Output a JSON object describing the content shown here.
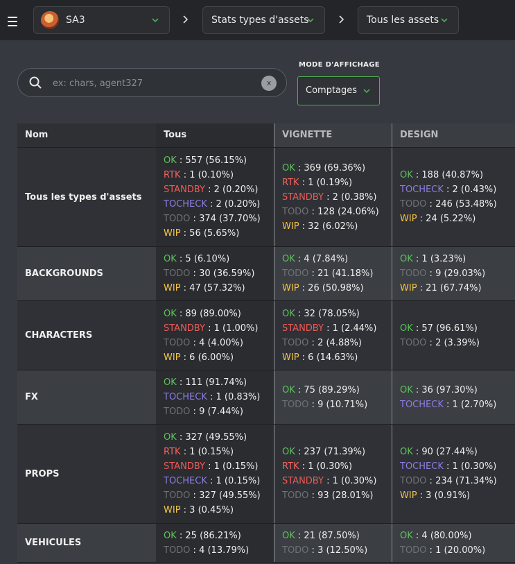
{
  "nav": {
    "project": "SA3",
    "section": "Stats types d'assets",
    "filter": "Tous les assets"
  },
  "search": {
    "placeholder": "ex: chars, agent327",
    "clear_label": "x"
  },
  "mode": {
    "label": "MODE D'AFFICHAGE",
    "value": "Comptages"
  },
  "colors": {
    "OK": "#5ec25a",
    "RTK": "#f2645e",
    "STANDBY": "#ed5a56",
    "TOCHECK": "#8c7ee0",
    "TODO": "#6e7176",
    "WIP": "#f6c343",
    "accent": "#4caf50"
  },
  "table": {
    "columns": [
      "Nom",
      "Tous",
      "VIGNETTE",
      "DESIGN"
    ],
    "rows": [
      {
        "name": "Tous les types d'assets",
        "cells": [
          [
            [
              "OK",
              " : 557 (56.15%)"
            ],
            [
              "RTK",
              " : 1 (0.10%)"
            ],
            [
              "STANDBY",
              " : 2 (0.20%)"
            ],
            [
              "TOCHECK",
              " : 2 (0.20%)"
            ],
            [
              "TODO",
              " : 374 (37.70%)"
            ],
            [
              "WIP",
              " : 56 (5.65%)"
            ]
          ],
          [
            [
              "OK",
              " : 369 (69.36%)"
            ],
            [
              "RTK",
              " : 1 (0.19%)"
            ],
            [
              "STANDBY",
              " : 2 (0.38%)"
            ],
            [
              "TODO",
              " : 128 (24.06%)"
            ],
            [
              "WIP",
              " : 32 (6.02%)"
            ]
          ],
          [
            [
              "OK",
              " : 188 (40.87%)"
            ],
            [
              "TOCHECK",
              " : 2 (0.43%)"
            ],
            [
              "TODO",
              " : 246 (53.48%)"
            ],
            [
              "WIP",
              " : 24 (5.22%)"
            ]
          ]
        ]
      },
      {
        "name": "BACKGROUNDS",
        "cells": [
          [
            [
              "OK",
              " : 5 (6.10%)"
            ],
            [
              "TODO",
              " : 30 (36.59%)"
            ],
            [
              "WIP",
              " : 47 (57.32%)"
            ]
          ],
          [
            [
              "OK",
              " : 4 (7.84%)"
            ],
            [
              "TODO",
              " : 21 (41.18%)"
            ],
            [
              "WIP",
              " : 26 (50.98%)"
            ]
          ],
          [
            [
              "OK",
              " : 1 (3.23%)"
            ],
            [
              "TODO",
              " : 9 (29.03%)"
            ],
            [
              "WIP",
              " : 21 (67.74%)"
            ]
          ]
        ]
      },
      {
        "name": "CHARACTERS",
        "cells": [
          [
            [
              "OK",
              " : 89 (89.00%)"
            ],
            [
              "STANDBY",
              " : 1 (1.00%)"
            ],
            [
              "TODO",
              " : 4 (4.00%)"
            ],
            [
              "WIP",
              " : 6 (6.00%)"
            ]
          ],
          [
            [
              "OK",
              " : 32 (78.05%)"
            ],
            [
              "STANDBY",
              " : 1 (2.44%)"
            ],
            [
              "TODO",
              " : 2 (4.88%)"
            ],
            [
              "WIP",
              " : 6 (14.63%)"
            ]
          ],
          [
            [
              "OK",
              " : 57 (96.61%)"
            ],
            [
              "TODO",
              " : 2 (3.39%)"
            ]
          ]
        ]
      },
      {
        "name": "FX",
        "cells": [
          [
            [
              "OK",
              " : 111 (91.74%)"
            ],
            [
              "TOCHECK",
              " : 1 (0.83%)"
            ],
            [
              "TODO",
              " : 9 (7.44%)"
            ]
          ],
          [
            [
              "OK",
              " : 75 (89.29%)"
            ],
            [
              "TODO",
              " : 9 (10.71%)"
            ]
          ],
          [
            [
              "OK",
              " : 36 (97.30%)"
            ],
            [
              "TOCHECK",
              " : 1 (2.70%)"
            ]
          ]
        ]
      },
      {
        "name": "PROPS",
        "cells": [
          [
            [
              "OK",
              " : 327 (49.55%)"
            ],
            [
              "RTK",
              " : 1 (0.15%)"
            ],
            [
              "STANDBY",
              " : 1 (0.15%)"
            ],
            [
              "TOCHECK",
              " : 1 (0.15%)"
            ],
            [
              "TODO",
              " : 327 (49.55%)"
            ],
            [
              "WIP",
              " : 3 (0.45%)"
            ]
          ],
          [
            [
              "OK",
              " : 237 (71.39%)"
            ],
            [
              "RTK",
              " : 1 (0.30%)"
            ],
            [
              "STANDBY",
              " : 1 (0.30%)"
            ],
            [
              "TODO",
              " : 93 (28.01%)"
            ]
          ],
          [
            [
              "OK",
              " : 90 (27.44%)"
            ],
            [
              "TOCHECK",
              " : 1 (0.30%)"
            ],
            [
              "TODO",
              " : 234 (71.34%)"
            ],
            [
              "WIP",
              " : 3 (0.91%)"
            ]
          ]
        ]
      },
      {
        "name": "VEHICULES",
        "cells": [
          [
            [
              "OK",
              " : 25 (86.21%)"
            ],
            [
              "TODO",
              " : 4 (13.79%)"
            ]
          ],
          [
            [
              "OK",
              " : 21 (87.50%)"
            ],
            [
              "TODO",
              " : 3 (12.50%)"
            ]
          ],
          [
            [
              "OK",
              " : 4 (80.00%)"
            ],
            [
              "TODO",
              " : 1 (20.00%)"
            ]
          ]
        ]
      }
    ]
  }
}
